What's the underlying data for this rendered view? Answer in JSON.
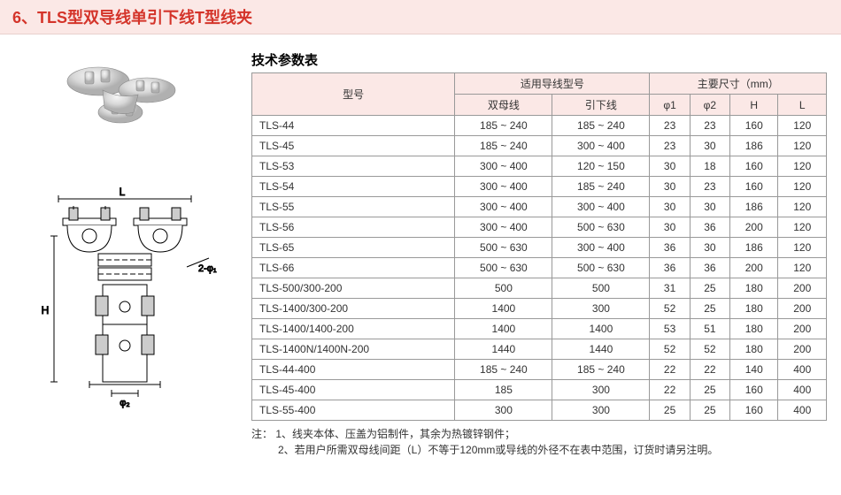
{
  "header": {
    "title": "6、TLS型双导线单引下线T型线夹"
  },
  "table": {
    "title": "技术参数表",
    "header": {
      "model": "型号",
      "applicable": "适用导线型号",
      "dimensions": "主要尺寸（mm）",
      "sub": {
        "busbar": "双母线",
        "leadwire": "引下线",
        "phi1": "φ1",
        "phi2": "φ2",
        "H": "H",
        "L": "L"
      }
    },
    "rows": [
      {
        "m": "TLS-44",
        "b": "185 ~ 240",
        "l": "185 ~ 240",
        "p1": "23",
        "p2": "23",
        "H": "160",
        "L": "120"
      },
      {
        "m": "TLS-45",
        "b": "185 ~ 240",
        "l": "300 ~ 400",
        "p1": "23",
        "p2": "30",
        "H": "186",
        "L": "120"
      },
      {
        "m": "TLS-53",
        "b": "300 ~ 400",
        "l": "120 ~ 150",
        "p1": "30",
        "p2": "18",
        "H": "160",
        "L": "120"
      },
      {
        "m": "TLS-54",
        "b": "300 ~ 400",
        "l": "185 ~ 240",
        "p1": "30",
        "p2": "23",
        "H": "160",
        "L": "120"
      },
      {
        "m": "TLS-55",
        "b": "300 ~ 400",
        "l": "300 ~ 400",
        "p1": "30",
        "p2": "30",
        "H": "186",
        "L": "120"
      },
      {
        "m": "TLS-56",
        "b": "300 ~ 400",
        "l": "500 ~ 630",
        "p1": "30",
        "p2": "36",
        "H": "200",
        "L": "120"
      },
      {
        "m": "TLS-65",
        "b": "500 ~ 630",
        "l": "300 ~ 400",
        "p1": "36",
        "p2": "30",
        "H": "186",
        "L": "120"
      },
      {
        "m": "TLS-66",
        "b": "500 ~ 630",
        "l": "500 ~ 630",
        "p1": "36",
        "p2": "36",
        "H": "200",
        "L": "120"
      },
      {
        "m": "TLS-500/300-200",
        "b": "500",
        "l": "500",
        "p1": "31",
        "p2": "25",
        "H": "180",
        "L": "200"
      },
      {
        "m": "TLS-1400/300-200",
        "b": "1400",
        "l": "300",
        "p1": "52",
        "p2": "25",
        "H": "180",
        "L": "200"
      },
      {
        "m": "TLS-1400/1400-200",
        "b": "1400",
        "l": "1400",
        "p1": "53",
        "p2": "51",
        "H": "180",
        "L": "200"
      },
      {
        "m": "TLS-1400N/1400N-200",
        "b": "1440",
        "l": "1440",
        "p1": "52",
        "p2": "52",
        "H": "180",
        "L": "200"
      },
      {
        "m": "TLS-44-400",
        "b": "185 ~ 240",
        "l": "185 ~ 240",
        "p1": "22",
        "p2": "22",
        "H": "140",
        "L": "400"
      },
      {
        "m": "TLS-45-400",
        "b": "185",
        "l": "300",
        "p1": "22",
        "p2": "25",
        "H": "160",
        "L": "400"
      },
      {
        "m": "TLS-55-400",
        "b": "300",
        "l": "300",
        "p1": "25",
        "p2": "25",
        "H": "160",
        "L": "400"
      }
    ]
  },
  "notes": {
    "label": "注：",
    "line1": "1、线夹本体、压盖为铝制件，其余为热镀锌钢件；",
    "line2": "2、若用户所需双母线间距（L）不等于120mm或导线的外径不在表中范围，订货时请另注明。"
  },
  "styling": {
    "header_bg": "#fbe8e6",
    "header_title_color": "#d4342a",
    "th_bg": "#fbe8e6",
    "border_color": "#999999",
    "body_bg": "#ffffff",
    "diagram_labels": {
      "L": "L",
      "H": "H",
      "phi1": "2-φ1",
      "phi2": "φ2"
    }
  }
}
